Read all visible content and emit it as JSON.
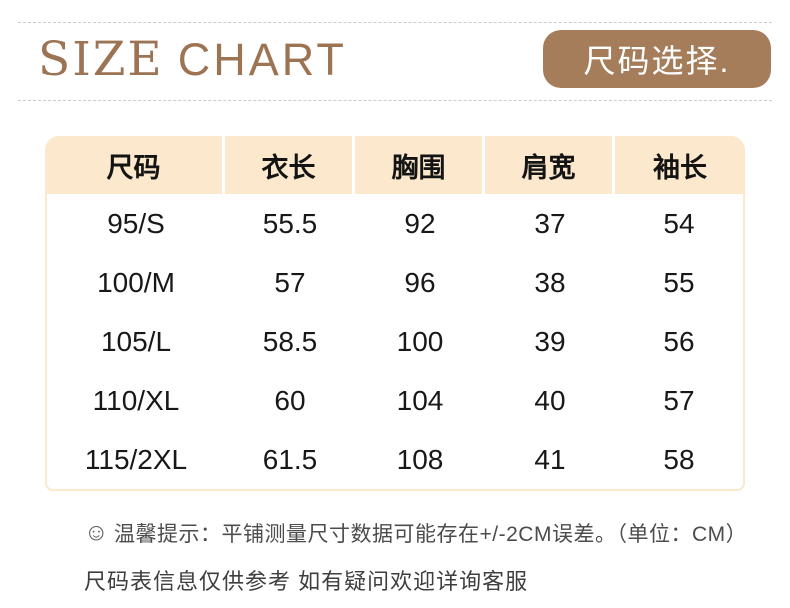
{
  "header": {
    "title_serif": "SIZE",
    "title_sans": "CHART",
    "badge_label": "尺码选择."
  },
  "table": {
    "columns": [
      "尺码",
      "衣长",
      "胸围",
      "肩宽",
      "袖长"
    ],
    "rows": [
      [
        "95/S",
        "55.5",
        "92",
        "37",
        "54"
      ],
      [
        "100/M",
        "57",
        "96",
        "38",
        "55"
      ],
      [
        "105/L",
        "58.5",
        "100",
        "39",
        "56"
      ],
      [
        "110/XL",
        "60",
        "104",
        "40",
        "57"
      ],
      [
        "115/2XL",
        "61.5",
        "108",
        "41",
        "58"
      ]
    ]
  },
  "footer": {
    "smiley_icon": "☺",
    "tip": "温馨提示：平铺测量尺寸数据可能存在+/-2CM误差。（单位：CM）",
    "note": "尺码表信息仅供参考 如有疑问欢迎详询客服"
  },
  "colors": {
    "brand_brown": "#a57d5b",
    "title_brown": "#9d7453",
    "table_header_bg": "#fce8cd",
    "body_text": "#181818",
    "footer_text": "#4c4c4c"
  }
}
